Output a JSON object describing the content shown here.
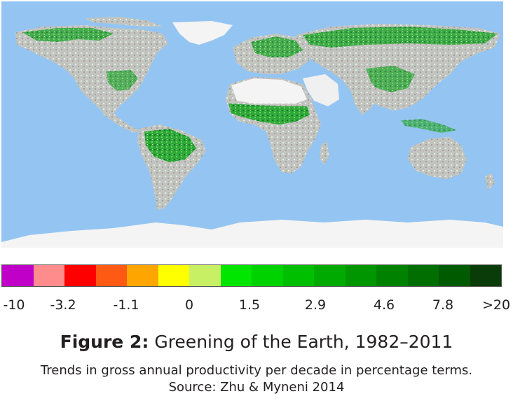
{
  "legend": {
    "colors": [
      "#c000c8",
      "#ff8c8c",
      "#ff0000",
      "#ff5a14",
      "#ffa500",
      "#ffff00",
      "#c8f064",
      "#00e600",
      "#00d200",
      "#00be00",
      "#00aa00",
      "#009600",
      "#008200",
      "#006e00",
      "#005a00",
      "#0a3c0a"
    ],
    "labels": [
      "-10",
      "-3.2",
      "-1.1",
      "0",
      "1.5",
      "2.9",
      "4.6",
      "7.8",
      ">20"
    ]
  },
  "figure": {
    "label": "Figure 2:",
    "title": "Greening of the Earth, 1982–2011",
    "caption_line1": "Trends in gross annual productivity per decade in percentage terms.",
    "caption_line2": "Source: Zhu & Myneni 2014"
  },
  "map": {
    "ocean_color": "#94c5f2",
    "ice_color": "#f4f4f4",
    "land_base_color": "#c6c8c4",
    "greening_color": "#1f9a2c"
  }
}
